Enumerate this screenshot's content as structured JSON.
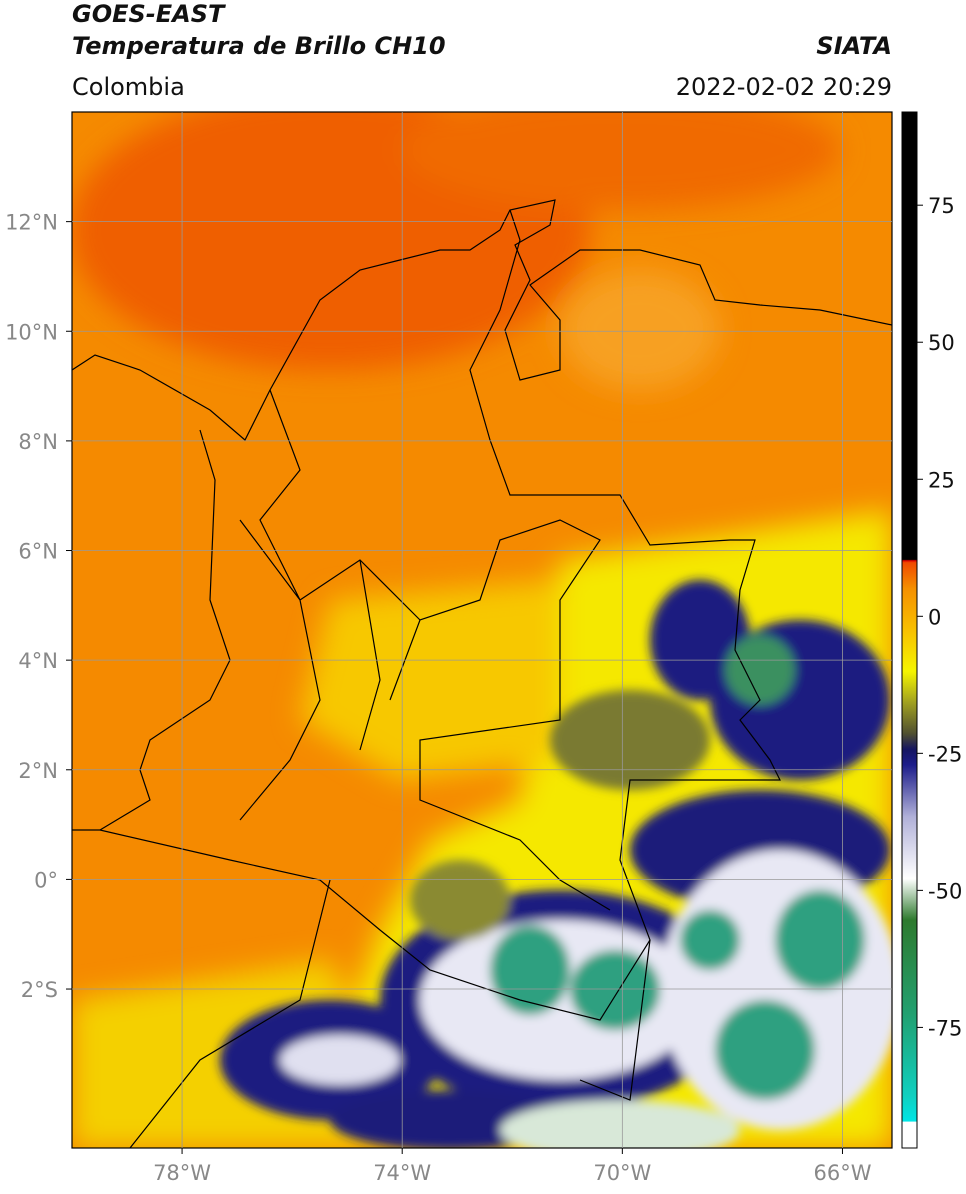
{
  "header": {
    "title": "GOES-EAST",
    "subtitle": "Temperatura de Brillo CH10",
    "region": "Colombia",
    "source": "SIATA",
    "timestamp": "2022-02-02 20:29"
  },
  "map": {
    "xlim": [
      -80,
      -65.1
    ],
    "ylim": [
      -4.9,
      14
    ],
    "xticks": [
      {
        "value": -78,
        "label": "78°W"
      },
      {
        "value": -74,
        "label": "74°W"
      },
      {
        "value": -70,
        "label": "70°W"
      },
      {
        "value": -66,
        "label": "66°W"
      }
    ],
    "yticks": [
      {
        "value": 12,
        "label": "12°N"
      },
      {
        "value": 10,
        "label": "10°N"
      },
      {
        "value": 8,
        "label": "8°N"
      },
      {
        "value": 6,
        "label": "6°N"
      },
      {
        "value": 4,
        "label": "4°N"
      },
      {
        "value": 2,
        "label": "2°N"
      },
      {
        "value": 0,
        "label": "0°"
      },
      {
        "value": -2,
        "label": "2°S"
      }
    ],
    "grid": true
  },
  "colorbar": {
    "lim": [
      -97,
      92
    ],
    "ticks": [
      75,
      50,
      25,
      0,
      -25,
      -50,
      -75
    ]
  }
}
